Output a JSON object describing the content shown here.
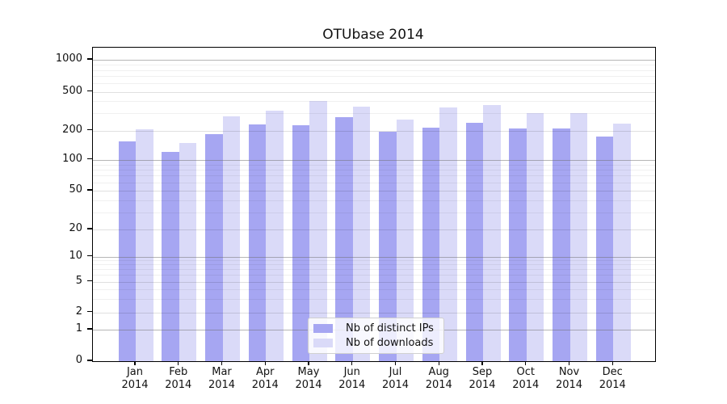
{
  "title": "OTUbase 2014",
  "colors": {
    "ips": "#a6a6f2",
    "dl": "#dadaf8"
  },
  "legend": {
    "items": [
      {
        "label": "Nb of distinct IPs",
        "key": "ips"
      },
      {
        "label": "Nb of downloads",
        "key": "dl"
      }
    ]
  },
  "y_axis": {
    "tick_labels": [
      1000,
      500,
      200,
      100,
      50,
      20,
      10,
      5,
      2,
      1,
      0
    ]
  },
  "x_axis": {
    "months": [
      "Jan",
      "Feb",
      "Mar",
      "Apr",
      "May",
      "Jun",
      "Jul",
      "Aug",
      "Sep",
      "Oct",
      "Nov",
      "Dec"
    ],
    "year": "2014"
  },
  "chart_data": {
    "type": "bar",
    "title": "OTUbase 2014",
    "categories": [
      "Jan 2014",
      "Feb 2014",
      "Mar 2014",
      "Apr 2014",
      "May 2014",
      "Jun 2014",
      "Jul 2014",
      "Aug 2014",
      "Sep 2014",
      "Oct 2014",
      "Nov 2014",
      "Dec 2014"
    ],
    "series": [
      {
        "name": "Nb of distinct IPs",
        "key": "ips",
        "values": [
          155,
          120,
          185,
          230,
          228,
          275,
          195,
          215,
          240,
          210,
          212,
          173
        ]
      },
      {
        "name": "Nb of downloads",
        "key": "dl",
        "values": [
          205,
          150,
          280,
          320,
          405,
          355,
          262,
          348,
          368,
          302,
          302,
          235
        ]
      }
    ],
    "bar_colors": {
      "Nb of distinct IPs": "#a6a6f2",
      "Nb of downloads": "#dadaf8"
    },
    "yscale": "log-like with 0 baseline (symlog)",
    "y_ticks": [
      0,
      1,
      2,
      5,
      10,
      20,
      50,
      100,
      200,
      500,
      1000
    ],
    "ylim": [
      0,
      1150
    ],
    "grid": true,
    "legend_position": "lower center"
  }
}
